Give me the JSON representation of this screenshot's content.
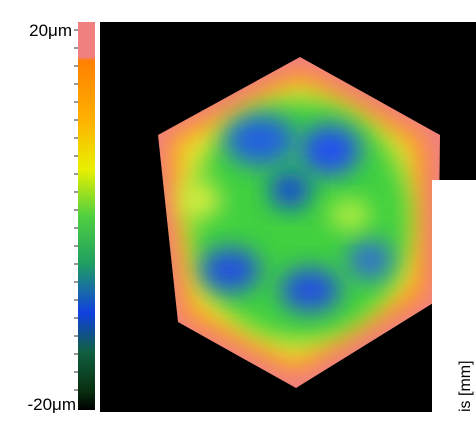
{
  "colorbar": {
    "max_label": "20μm",
    "min_label": "-20μm"
  },
  "axis_label": "is [mm]"
}
